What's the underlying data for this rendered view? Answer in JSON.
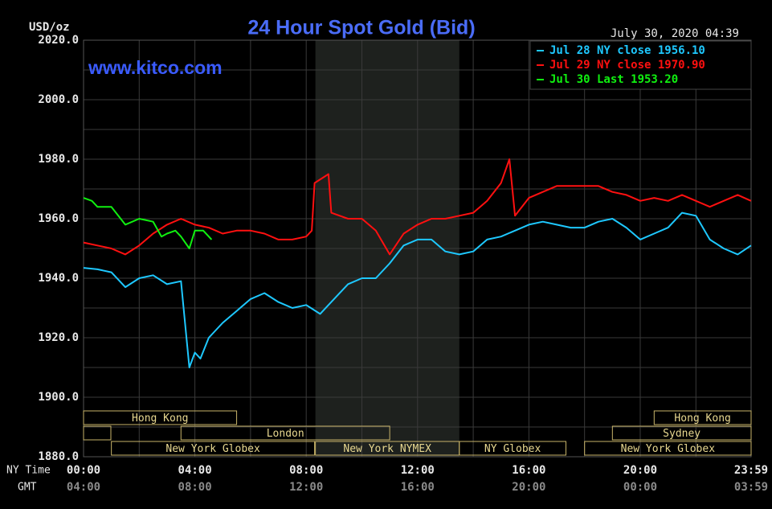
{
  "chart_data": {
    "type": "line",
    "title": "24 Hour Spot Gold (Bid)",
    "y_label": "USD/oz",
    "timestamp": "July 30, 2020 04:39",
    "watermark": "www.kitco.com",
    "x_row_label": "NY Time",
    "x2_row_label": "GMT",
    "xlim": [
      0,
      23.9833
    ],
    "ylim": [
      1880,
      2020
    ],
    "xticks": [
      {
        "value": 0,
        "label": "00:00"
      },
      {
        "value": 4,
        "label": "04:00"
      },
      {
        "value": 8,
        "label": "08:00"
      },
      {
        "value": 12,
        "label": "12:00"
      },
      {
        "value": 16,
        "label": "16:00"
      },
      {
        "value": 20,
        "label": "20:00"
      },
      {
        "value": 23.9833,
        "label": "23:59"
      }
    ],
    "x2ticks": [
      {
        "value": 0,
        "label": "04:00"
      },
      {
        "value": 4,
        "label": "08:00"
      },
      {
        "value": 8,
        "label": "12:00"
      },
      {
        "value": 12,
        "label": "16:00"
      },
      {
        "value": 16,
        "label": "20:00"
      },
      {
        "value": 20,
        "label": "00:00"
      },
      {
        "value": 23.9833,
        "label": "03:59"
      }
    ],
    "x_minor_grid": [
      2,
      6,
      10,
      14,
      18,
      22
    ],
    "yticks": [
      {
        "value": 1880,
        "label": "1880.0"
      },
      {
        "value": 1900,
        "label": "1900.0"
      },
      {
        "value": 1920,
        "label": "1920.0"
      },
      {
        "value": 1940,
        "label": "1940.0"
      },
      {
        "value": 1960,
        "label": "1960.0"
      },
      {
        "value": 1980,
        "label": "1980.0"
      },
      {
        "value": 2000,
        "label": "2000.0"
      },
      {
        "value": 2020,
        "label": "2020.0"
      }
    ],
    "y_minor_grid": [
      1890,
      1910,
      1930,
      1950,
      1970,
      1990,
      2010
    ],
    "grid": true,
    "legend": "top-right",
    "series": [
      {
        "name": "Jul 28 NY close 1956.10",
        "color": "#1ec8ff",
        "x": [
          0,
          0.5,
          1,
          1.5,
          2,
          2.5,
          3,
          3.5,
          3.8,
          4,
          4.2,
          4.5,
          5,
          5.5,
          6,
          6.5,
          7,
          7.5,
          8,
          8.5,
          9,
          9.5,
          10,
          10.5,
          11,
          11.5,
          12,
          12.5,
          13,
          13.5,
          14,
          14.5,
          15,
          15.5,
          16,
          16.5,
          17,
          17.5,
          18,
          18.5,
          19,
          19.5,
          20,
          20.5,
          21,
          21.5,
          22,
          22.5,
          23,
          23.5,
          23.98
        ],
        "values": [
          1943.5,
          1943,
          1942,
          1937,
          1940,
          1941,
          1938,
          1939,
          1910,
          1915,
          1913,
          1920,
          1925,
          1929,
          1933,
          1935,
          1932,
          1930,
          1931,
          1928,
          1933,
          1938,
          1940,
          1940,
          1945,
          1951,
          1953,
          1953,
          1949,
          1948,
          1949,
          1953,
          1954,
          1956,
          1958,
          1959,
          1958,
          1957,
          1957,
          1959,
          1960,
          1957,
          1953,
          1955,
          1957,
          1962,
          1961,
          1953,
          1950,
          1948,
          1951
        ]
      },
      {
        "name": "Jul 29 NY close 1970.90",
        "color": "#ff1010",
        "x": [
          0,
          1,
          1.5,
          2,
          2.5,
          3,
          3.5,
          4,
          4.5,
          5,
          5.5,
          6,
          6.5,
          7,
          7.5,
          8,
          8.2,
          8.3,
          8.8,
          8.9,
          9.5,
          10,
          10.5,
          11,
          11.5,
          12,
          12.5,
          13,
          13.5,
          14,
          14.5,
          15,
          15.3,
          15.5,
          16,
          16.5,
          17,
          17.5,
          18,
          18.5,
          19,
          19.5,
          20,
          20.5,
          21,
          21.5,
          22,
          22.5,
          23,
          23.5,
          23.98
        ],
        "values": [
          1952,
          1950,
          1948,
          1951,
          1955,
          1958,
          1960,
          1958,
          1957,
          1955,
          1956,
          1956,
          1955,
          1953,
          1953,
          1954,
          1956,
          1972,
          1975,
          1962,
          1960,
          1960,
          1956,
          1948,
          1955,
          1958,
          1960,
          1960,
          1961,
          1962,
          1966,
          1972,
          1980,
          1961,
          1967,
          1969,
          1971,
          1971,
          1971,
          1971,
          1969,
          1968,
          1966,
          1967,
          1966,
          1968,
          1966,
          1964,
          1966,
          1968,
          1966
        ]
      },
      {
        "name": "Jul 30 Last 1953.20",
        "color": "#10f010",
        "x": [
          0,
          0.3,
          0.5,
          1,
          1.5,
          2,
          2.5,
          2.8,
          3,
          3.3,
          3.5,
          3.8,
          4,
          4.3,
          4.6
        ],
        "values": [
          1967,
          1966,
          1964,
          1964,
          1958,
          1960,
          1959,
          1954,
          1955,
          1956,
          1954,
          1950,
          1956,
          1956,
          1953
        ]
      }
    ],
    "sessions": [
      {
        "label": "Hong Kong",
        "start": 0,
        "end": 5.5
      },
      {
        "label": "London",
        "start": 3.5,
        "end": 11
      },
      {
        "label": "New York Globex",
        "start": 1,
        "end": 8.3
      },
      {
        "label": "New York NYMEX",
        "start": 8.33,
        "end": 13.5
      },
      {
        "label": "NY Globex",
        "start": 13.5,
        "end": 17.33
      },
      {
        "label": "Hong Kong",
        "start": 20.5,
        "end": 23.9833
      },
      {
        "label": "Sydney",
        "start": 19,
        "end": 23.9833
      },
      {
        "label": "New York Globex",
        "start": 18,
        "end": 23.9833
      }
    ]
  }
}
